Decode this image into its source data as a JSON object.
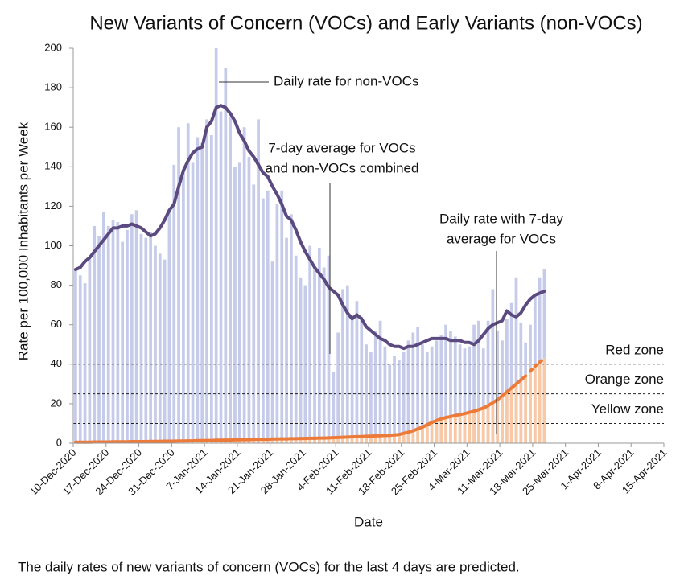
{
  "chart_data": {
    "type": "bar",
    "title": "New Variants of Concern (VOCs) and Early Variants (non-VOCs)",
    "x_label": "Date",
    "y_label": "Rate per 100,000 Inhabitants per Week",
    "footnote": "The daily rates of new variants of concern (VOCs) for the last 4 days are predicted.",
    "xlim": [
      "2020-12-10",
      "2021-04-15"
    ],
    "xticks": [
      {
        "value": "2020-12-10",
        "label": "10-Dec-2020"
      },
      {
        "value": "2020-12-17",
        "label": "17-Dec-2020"
      },
      {
        "value": "2020-12-24",
        "label": "24-Dec-2020"
      },
      {
        "value": "2020-12-31",
        "label": "31-Dec-2020"
      },
      {
        "value": "2021-01-07",
        "label": "7-Jan-2021"
      },
      {
        "value": "2021-01-14",
        "label": "14-Jan-2021"
      },
      {
        "value": "2021-01-21",
        "label": "21-Jan-2021"
      },
      {
        "value": "2021-01-28",
        "label": "28-Jan-2021"
      },
      {
        "value": "2021-02-04",
        "label": "4-Feb-2021"
      },
      {
        "value": "2021-02-11",
        "label": "11-Feb-2021"
      },
      {
        "value": "2021-02-18",
        "label": "18-Feb-2021"
      },
      {
        "value": "2021-02-25",
        "label": "25-Feb-2021"
      },
      {
        "value": "2021-03-04",
        "label": "4-Mar-2021"
      },
      {
        "value": "2021-03-11",
        "label": "11-Mar-2021"
      },
      {
        "value": "2021-03-18",
        "label": "18-Mar-2021"
      },
      {
        "value": "2021-03-25",
        "label": "25-Mar-2021"
      },
      {
        "value": "2021-04-01",
        "label": "1-Apr-2021"
      },
      {
        "value": "2021-04-08",
        "label": "8-Apr-2021"
      },
      {
        "value": "2021-04-15",
        "label": "15-Apr-2021"
      }
    ],
    "ylim": [
      0,
      200
    ],
    "yticks": [
      0,
      20,
      40,
      60,
      80,
      100,
      120,
      140,
      160,
      180,
      200
    ],
    "x_start": "2020-12-10",
    "x_step_days": 1,
    "series": [
      {
        "style": "bar",
        "color": "#c6cbe9",
        "values": [
          88,
          85,
          81,
          94,
          110,
          105,
          117,
          110,
          113,
          112,
          102,
          108,
          116,
          118,
          106,
          104,
          107,
          100,
          96,
          93,
          118,
          141,
          160,
          139,
          162,
          142,
          155,
          152,
          164,
          156,
          200,
          168,
          190,
          165,
          140,
          142,
          160,
          145,
          131,
          164,
          124,
          128,
          92,
          121,
          128,
          104,
          116,
          95,
          84,
          80,
          100,
          88,
          99,
          89,
          95,
          36,
          56,
          78,
          80,
          65,
          72,
          64,
          50,
          46,
          57,
          62,
          49,
          40,
          44,
          42,
          46,
          52,
          56,
          59,
          50,
          46,
          49,
          52,
          55,
          60,
          57,
          54,
          50,
          48,
          49,
          60,
          62,
          48,
          62,
          78,
          57,
          52,
          63,
          71,
          84,
          61,
          51,
          60,
          75,
          84,
          88
        ]
      },
      {
        "style": "bar",
        "color": "#f9c9a6",
        "values": [
          0.4,
          0.5,
          0.6,
          0.5,
          0.7,
          0.6,
          0.5,
          0.7,
          0.6,
          0.8,
          0.7,
          0.8,
          0.9,
          0.7,
          0.9,
          0.8,
          0.8,
          1.0,
          0.9,
          1.0,
          1.1,
          1.0,
          1.2,
          1.0,
          1.3,
          1.2,
          1.4,
          1.2,
          1.5,
          1.3,
          1.6,
          1.5,
          1.7,
          1.5,
          1.8,
          1.6,
          1.9,
          1.7,
          2.0,
          1.8,
          2.1,
          1.9,
          2.2,
          2.0,
          2.3,
          2.1,
          2.4,
          2.2,
          2.5,
          2.3,
          2.6,
          2.4,
          2.7,
          2.5,
          2.9,
          2.7,
          3.1,
          2.9,
          3.3,
          3.1,
          3.5,
          3.3,
          3.7,
          3.5,
          3.9,
          3.7,
          4.1,
          3.9,
          4.4,
          4.6,
          5.2,
          5.5,
          6.6,
          7.0,
          8.5,
          9.0,
          10.8,
          11.2,
          12.6,
          12.8,
          13.9,
          13.6,
          14.8,
          14.6,
          15.9,
          16.0,
          17.3,
          17.5,
          19.6,
          20.2,
          22.8,
          23.5,
          26.5,
          27.6,
          30.8,
          31.5,
          35.0,
          36.0,
          39.5,
          41.2,
          43.0
        ]
      },
      {
        "style": "line",
        "color": "#5a4a80",
        "values": [
          88,
          89,
          92,
          94,
          97,
          100,
          103,
          106,
          109,
          109,
          110,
          110,
          111,
          110,
          109,
          107,
          105,
          106,
          109,
          113,
          118,
          121,
          130,
          138,
          143,
          147,
          149,
          150,
          160,
          163,
          170,
          171,
          170,
          167,
          163,
          157,
          153,
          148,
          145,
          141,
          137,
          135,
          130,
          126,
          121,
          115,
          113,
          108,
          102,
          97,
          93,
          89,
          86,
          83,
          79,
          77,
          75,
          70,
          66,
          63,
          65,
          63,
          59,
          57,
          55,
          53,
          52,
          50,
          49,
          49,
          48,
          49,
          49,
          50,
          51,
          52,
          53,
          53,
          53,
          53,
          52,
          52,
          52,
          51,
          51,
          50,
          52,
          55,
          58,
          60,
          61,
          62,
          67,
          65,
          64,
          66,
          70,
          73,
          75,
          76,
          77
        ]
      },
      {
        "style": "line",
        "color": "#ec7b3a",
        "values": [
          0.5,
          0.5,
          0.5,
          0.5,
          0.6,
          0.6,
          0.6,
          0.6,
          0.7,
          0.7,
          0.7,
          0.7,
          0.8,
          0.8,
          0.8,
          0.8,
          0.9,
          0.9,
          0.9,
          1.0,
          1.0,
          1.0,
          1.1,
          1.1,
          1.2,
          1.2,
          1.3,
          1.3,
          1.4,
          1.4,
          1.5,
          1.5,
          1.6,
          1.6,
          1.7,
          1.7,
          1.8,
          1.8,
          1.9,
          1.9,
          2.0,
          2.0,
          2.1,
          2.1,
          2.2,
          2.2,
          2.3,
          2.3,
          2.4,
          2.4,
          2.5,
          2.5,
          2.6,
          2.6,
          2.7,
          2.8,
          2.9,
          3.0,
          3.1,
          3.2,
          3.3,
          3.4,
          3.5,
          3.6,
          3.7,
          3.8,
          3.9,
          4.0,
          4.2,
          4.4,
          5.0,
          5.6,
          6.3,
          7.2,
          8.2,
          9.3,
          10.5,
          11.5,
          12.3,
          13.0,
          13.5,
          14.0,
          14.5,
          15.0,
          15.6,
          16.2,
          17.0,
          17.8,
          19.0,
          20.5,
          22.0,
          24.0,
          26.0,
          28.0,
          30.0,
          32.0,
          34.0,
          null,
          null,
          null,
          null
        ]
      },
      {
        "style": "line",
        "dashed": true,
        "color": "#ec7b3a",
        "values": [
          null,
          null,
          null,
          null,
          null,
          null,
          null,
          null,
          null,
          null,
          null,
          null,
          null,
          null,
          null,
          null,
          null,
          null,
          null,
          null,
          null,
          null,
          null,
          null,
          null,
          null,
          null,
          null,
          null,
          null,
          null,
          null,
          null,
          null,
          null,
          null,
          null,
          null,
          null,
          null,
          null,
          null,
          null,
          null,
          null,
          null,
          null,
          null,
          null,
          null,
          null,
          null,
          null,
          null,
          null,
          null,
          null,
          null,
          null,
          null,
          null,
          null,
          null,
          null,
          null,
          null,
          null,
          null,
          null,
          null,
          null,
          null,
          null,
          null,
          null,
          null,
          null,
          null,
          null,
          null,
          null,
          null,
          null,
          null,
          null,
          null,
          null,
          null,
          null,
          null,
          null,
          null,
          null,
          null,
          null,
          null,
          null,
          36.5,
          39.0,
          41.0,
          43.0
        ]
      }
    ],
    "zones": [
      {
        "label": "Red zone",
        "value": 40
      },
      {
        "label": "Orange zone",
        "value": 25
      },
      {
        "label": "Yellow zone",
        "value": 10
      }
    ],
    "annotations": [
      {
        "lines": [
          "Daily rate for non-VOCs"
        ]
      },
      {
        "lines": [
          "7-day average for VOCs",
          "and non-VOCs combined"
        ]
      },
      {
        "lines": [
          "Daily rate with 7-day",
          "average for VOCs"
        ]
      }
    ]
  }
}
